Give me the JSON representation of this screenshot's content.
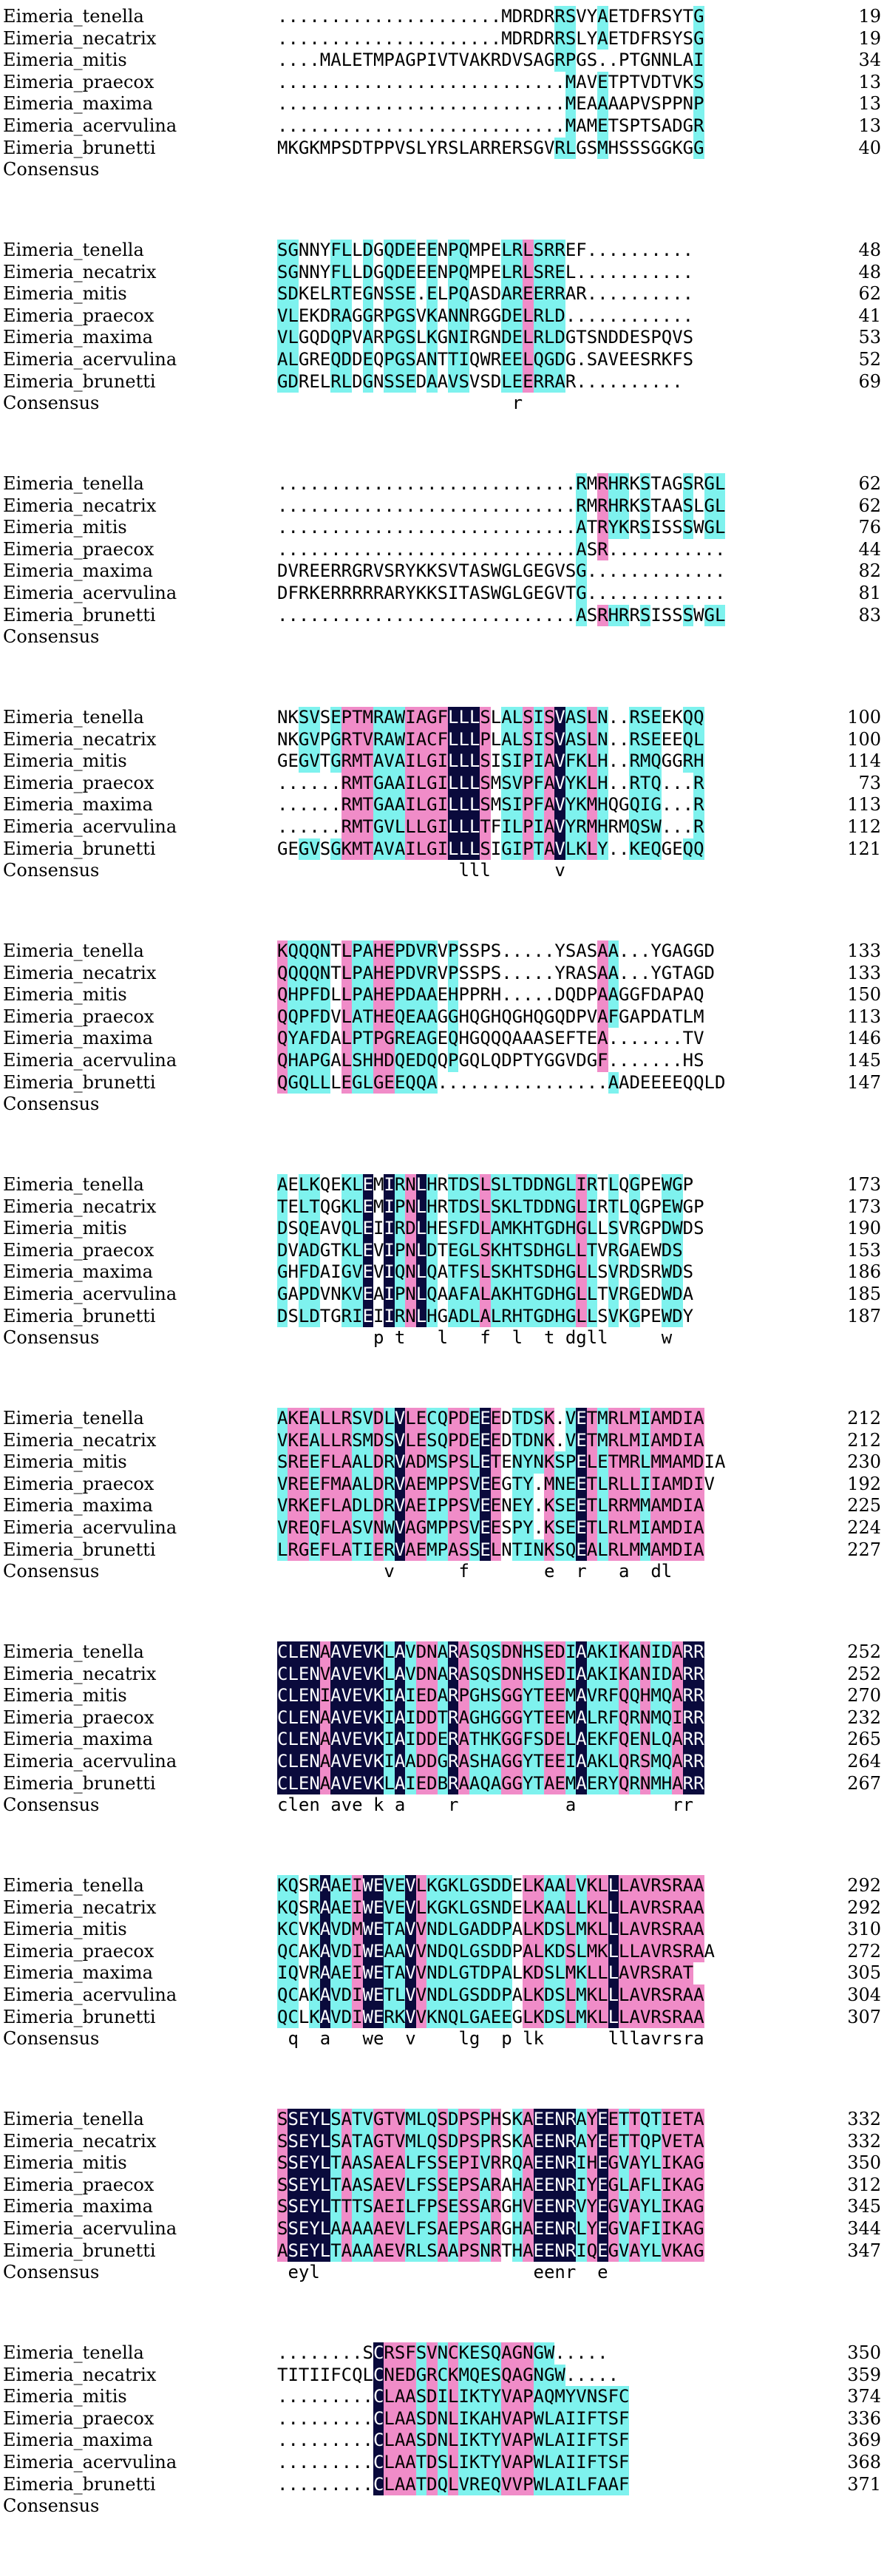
{
  "colors": {
    "identical": "#0a0a3c",
    "high": "#f08cc8",
    "similar": "#7ef2ee"
  },
  "consensus_label": "Consensus",
  "blocks": [
    {
      "rows": [
        {
          "name": "Eimeria_tenella",
          "seq": ".....................MDRDRRSVYAETDFRSYTG",
          "num": "19"
        },
        {
          "name": "Eimeria_necatrix",
          "seq": ".....................MDRDRRSLYAETDFRSYSG",
          "num": "19"
        },
        {
          "name": "Eimeria_mitis",
          "seq": "....MALETMPAGPIVTVAKRDVSAGRPGS..PTGNNLAI",
          "num": "34"
        },
        {
          "name": "Eimeria_praecox",
          "seq": "...........................MAVETPTVDTVKS",
          "num": "13"
        },
        {
          "name": "Eimeria_maxima",
          "seq": "...........................MEAAAAPVSPPNP",
          "num": "13"
        },
        {
          "name": "Eimeria_acervulina",
          "seq": "...........................MAMETSPTSADGR",
          "num": "13"
        },
        {
          "name": "Eimeria_brunetti",
          "seq": "MKGKMPSDTPPVSLYRSLARRERSGVRLGSMHSSSGGKGG",
          "num": "40"
        }
      ],
      "consensus": ""
    },
    {
      "rows": [
        {
          "name": "Eimeria_tenella",
          "seq": "SGNNYFLLDGQDEEENPQMPELRLSRREF..........",
          "num": "48"
        },
        {
          "name": "Eimeria_necatrix",
          "seq": "SGNNYFLLDGQDEEENPQMPELRLSREL...........",
          "num": "48"
        },
        {
          "name": "Eimeria_mitis",
          "seq": "SDKELRTEGNSSE.ELPQASDAREERRAR..........",
          "num": "62"
        },
        {
          "name": "Eimeria_praecox",
          "seq": "VLEKDRAGGRPGSVKANNRGGDELRLD............",
          "num": "41"
        },
        {
          "name": "Eimeria_maxima",
          "seq": "VLGQDQPVARPGSLKGNIRGNDELRLDGTSNDDESPQVS",
          "num": "53"
        },
        {
          "name": "Eimeria_acervulina",
          "seq": "ALGREQDDEQPGSANTTIQWREELQGDG.SAVEESRKFS",
          "num": "52"
        },
        {
          "name": "Eimeria_brunetti",
          "seq": "GDRELRLDGNSSEDAAVSVSDLEERRAR..........",
          "num": "69"
        }
      ],
      "consensus": "                      r                "
    },
    {
      "rows": [
        {
          "name": "Eimeria_tenella",
          "seq": "............................RMRHRKSTAGSRGL",
          "num": "62"
        },
        {
          "name": "Eimeria_necatrix",
          "seq": "............................RMRHRKSTAASLGL",
          "num": "62"
        },
        {
          "name": "Eimeria_mitis",
          "seq": "............................ATRYKRSISSSWGL",
          "num": "76"
        },
        {
          "name": "Eimeria_praecox",
          "seq": "............................ASR...........",
          "num": "44"
        },
        {
          "name": "Eimeria_maxima",
          "seq": "DVREERRGRVSRYKKSVTASWGLGEGVSG.............",
          "num": "82"
        },
        {
          "name": "Eimeria_acervulina",
          "seq": "DFRKERRRRRARYKKSITASWGLGEGVTG.............",
          "num": "81"
        },
        {
          "name": "Eimeria_brunetti",
          "seq": "............................ASRHRRSISSSWGL",
          "num": "83"
        }
      ],
      "consensus": ""
    },
    {
      "rows": [
        {
          "name": "Eimeria_tenella",
          "seq": "NKSVSEPTMRAWIAGFLLLSLALSISVASLN..RSEEKQQ",
          "num": "100"
        },
        {
          "name": "Eimeria_necatrix",
          "seq": "NKGVPGRTVRAWIACFLLLPLALSISVASLN..RSEEEQL",
          "num": "100"
        },
        {
          "name": "Eimeria_mitis",
          "seq": "GEGVTGRMTAVAILGILLLSISIPIAVFKLH..RMQGGRH",
          "num": "114"
        },
        {
          "name": "Eimeria_praecox",
          "seq": "......RMTGAAILGILLLSMSVPFAVYKLH..RTQ...R",
          "num": "73"
        },
        {
          "name": "Eimeria_maxima",
          "seq": "......RMTGAAILGILLLSMSIPFAVYKMHQGQIG...R",
          "num": "113"
        },
        {
          "name": "Eimeria_acervulina",
          "seq": "......RMTGVLLLGILLLTFILPIAVYRMHRMQSW...R",
          "num": "112"
        },
        {
          "name": "Eimeria_brunetti",
          "seq": "GEGVSGKMTAVAILGILLLSIGIPTAVLKLY..KEQGEQQ",
          "num": "121"
        }
      ],
      "consensus": "                 lll      v            "
    },
    {
      "rows": [
        {
          "name": "Eimeria_tenella",
          "seq": "KQQQNTLPAHEPDVRVPSSPS.....YSASAA...YGAGGD",
          "num": "133"
        },
        {
          "name": "Eimeria_necatrix",
          "seq": "QQQQNTLPAHEPDVRVPSSPS.....YRASAA...YGTAGD",
          "num": "133"
        },
        {
          "name": "Eimeria_mitis",
          "seq": "QHPFDLLPAHEPDAAEHPPRH.....DQDPAAGGFDAPAQ",
          "num": "150"
        },
        {
          "name": "Eimeria_praecox",
          "seq": "QQPFDVLATHEQEAAGGHQGHQGHQGQDPVAFGAPDATLM",
          "num": "113"
        },
        {
          "name": "Eimeria_maxima",
          "seq": "QYAFDALPTPGREAGEQHGQQQAAASEFTEA.......TV",
          "num": "146"
        },
        {
          "name": "Eimeria_acervulina",
          "seq": "QHAPGALSHHDQEDQQPGQLQDPTYGGVDGF.......HS",
          "num": "145"
        },
        {
          "name": "Eimeria_brunetti",
          "seq": "QGQLLLEGLGEEQQA................AADEEEEQQLD",
          "num": "147"
        }
      ],
      "consensus": ""
    },
    {
      "rows": [
        {
          "name": "Eimeria_tenella",
          "seq": "AELKQEKLEMIRNLHRTDSLSLTDDNGLIRTLQGPEWGP",
          "num": "173"
        },
        {
          "name": "Eimeria_necatrix",
          "seq": "TELTQGKLEMIPNLHRTDSLSKLTDDNGLIRTLQGPEWGP",
          "num": "173"
        },
        {
          "name": "Eimeria_mitis",
          "seq": "DSQEAVQLEIIRDLHESFDLAMKHTGDHGLLSVRGPDWDS",
          "num": "190"
        },
        {
          "name": "Eimeria_praecox",
          "seq": "DVADGTKLEVIPNLDTEGLSKHTSDHGLLTVRGAEWDS",
          "num": "153"
        },
        {
          "name": "Eimeria_maxima",
          "seq": "GHFDAIGVEVIQNLQATFSLSKHTSDHGLLSVRDSRWDS",
          "num": "186"
        },
        {
          "name": "Eimeria_acervulina",
          "seq": "GAPDVNKVEAIPNLQAAFALAKHTGDHGLLTVRGEDWDA",
          "num": "185"
        },
        {
          "name": "Eimeria_brunetti",
          "seq": "DSLDTGRIEIIRNLHGADLALRHTGDHGLLSVKGPEWDY",
          "num": "187"
        }
      ],
      "consensus": "         p t   l   f  l  t dgll     w  "
    },
    {
      "rows": [
        {
          "name": "Eimeria_tenella",
          "seq": "AKEALLRSVDLVLECQPDEEEDTDSK.VETMRLMIAMDIA",
          "num": "212"
        },
        {
          "name": "Eimeria_necatrix",
          "seq": "VKEALLRSMDSVLESQPDEEEDTDNK.VETMRLMIAMDIA",
          "num": "212"
        },
        {
          "name": "Eimeria_mitis",
          "seq": "SREEFLAALDRVADMSPSLETENYNKSPELETMRLMMAMDIA",
          "num": "230"
        },
        {
          "name": "Eimeria_praecox",
          "seq": "VREEFMAALDRVAEMPPSVEEGTY.MNEETLRLLIIAMDIV",
          "num": "192"
        },
        {
          "name": "Eimeria_maxima",
          "seq": "VRKEFLADLDRVAEIPPSVEENEY.KSEETLRRMMAMDIA",
          "num": "225"
        },
        {
          "name": "Eimeria_acervulina",
          "seq": "VREQFLASVNWVAGMPPSVEESPY.KSEETLRLMIAMDIA",
          "num": "224"
        },
        {
          "name": "Eimeria_brunetti",
          "seq": "LRGEFLATIERVAEMPASSELNTINKSQEALRLMMAMDIA",
          "num": "227"
        }
      ],
      "consensus": "          v      f       e  r   a  dl   "
    },
    {
      "rows": [
        {
          "name": "Eimeria_tenella",
          "seq": "CLENAAVEVKLAVDNARASQSDNHSEDIAAKIKANIDARR",
          "num": "252"
        },
        {
          "name": "Eimeria_necatrix",
          "seq": "CLENVAVEVKLAVDNARASQSDNHSEDIAAKIKANIDARR",
          "num": "252"
        },
        {
          "name": "Eimeria_mitis",
          "seq": "CLENIAVEVKIAIEDARPGHSGGYTEEMAVRFQQHMQARR",
          "num": "270"
        },
        {
          "name": "Eimeria_praecox",
          "seq": "CLENAAVEVKIAIDDTRAGHGGGYTEEMALRFQRNMQIRR",
          "num": "232"
        },
        {
          "name": "Eimeria_maxima",
          "seq": "CLENAAVEVKIAIDDERATHKGGFSDELAEKFQENLQARR",
          "num": "265"
        },
        {
          "name": "Eimeria_acervulina",
          "seq": "CLENAAVEVKIAADDGRASHAGGYTEEIAAKLQRSMQARR",
          "num": "264"
        },
        {
          "name": "Eimeria_brunetti",
          "seq": "CLENAAVEVKLAIEDBRAAQAGGYTAEMAERYQRNMHARR",
          "num": "267"
        }
      ],
      "consensus": "clen ave k a    r          a         rr"
    },
    {
      "rows": [
        {
          "name": "Eimeria_tenella",
          "seq": "KQSRAAEIWEVEVLKGKLGSDDELKAALVKLLLAVRSRAA",
          "num": "292"
        },
        {
          "name": "Eimeria_necatrix",
          "seq": "KQSRAAEIWEVEVLKGKLGSNDELKAALLKLLLAVRSRAA",
          "num": "292"
        },
        {
          "name": "Eimeria_mitis",
          "seq": "KCVKAVDMWETAVVNDLGADDPALKDSLMKLLLAVRSRAA",
          "num": "310"
        },
        {
          "name": "Eimeria_praecox",
          "seq": "QCAKAVDIWEAAVVNDQLGSDDPALKDSLMKLLLAVRSRAA",
          "num": "272"
        },
        {
          "name": "Eimeria_maxima",
          "seq": "IQVRAAEIWETAVVNDLGTDPALKDSLMKLLLAVRSRAT",
          "num": "305"
        },
        {
          "name": "Eimeria_acervulina",
          "seq": "QCAKAVDIWETLVVNDLGSDDPALKDSLMKLLLAVRSRAA",
          "num": "304"
        },
        {
          "name": "Eimeria_brunetti",
          "seq": "QCLKAVDIWERKVVKNQLGAEEGLKDSLMKLLLAVRSRAA",
          "num": "307"
        }
      ],
      "consensus": " q  a   we  v    lg  p lk      lllavrsra "
    },
    {
      "rows": [
        {
          "name": "Eimeria_tenella",
          "seq": "SSEYLSATVGTVMLQSDPSPHSKAEENRAYEETTQTIETA",
          "num": "332"
        },
        {
          "name": "Eimeria_necatrix",
          "seq": "SSEYLSATAGTVMLQSDPSPRSKAEENRAYEETTQPVETA",
          "num": "332"
        },
        {
          "name": "Eimeria_mitis",
          "seq": "SSEYLTAASAEALFSSEPIVRRQAEENRIHEGVAYLIKAG",
          "num": "350"
        },
        {
          "name": "Eimeria_praecox",
          "seq": "SSEYLTAASAEVLFSSEPSARAHAEENRIYEGLAFLIKAG",
          "num": "312"
        },
        {
          "name": "Eimeria_maxima",
          "seq": "SSEYLTTTSAEILFPSESSARGHVEENRVYEGVAYLIKAG",
          "num": "345"
        },
        {
          "name": "Eimeria_acervulina",
          "seq": "SSEYLAAAAAEVLFSAEPSARGHAEENRLYEGVAFIIKAG",
          "num": "344"
        },
        {
          "name": "Eimeria_brunetti",
          "seq": "ASEYLTAAAAEVRLSAAPSNRTHAEENRIQEGVAYLVKAG",
          "num": "347"
        }
      ],
      "consensus": " eyl                    eenr  e         "
    },
    {
      "rows": [
        {
          "name": "Eimeria_tenella",
          "seq": "........SCRSFSVNCKESQAGNGW.....",
          "num": "350"
        },
        {
          "name": "Eimeria_necatrix",
          "seq": "TITIIFCQLCNEDGRCKMQESQAGNGW.....",
          "num": "359"
        },
        {
          "name": "Eimeria_mitis",
          "seq": ".........CLAASDILIKTYVAPAQMYVNSFC",
          "num": "374"
        },
        {
          "name": "Eimeria_praecox",
          "seq": ".........CLAASDNLIKAHVAPWLAIIFTSF",
          "num": "336"
        },
        {
          "name": "Eimeria_maxima",
          "seq": ".........CLAASDNLIKTYVAPWLAIIFTSF",
          "num": "369"
        },
        {
          "name": "Eimeria_acervulina",
          "seq": ".........CLAATDSLIKTYVAPWLAIIFTSF",
          "num": "368"
        },
        {
          "name": "Eimeria_brunetti",
          "seq": ".........CLAATDQLVREQVVPWLAILFAAF",
          "num": "371"
        }
      ],
      "consensus": ""
    }
  ]
}
